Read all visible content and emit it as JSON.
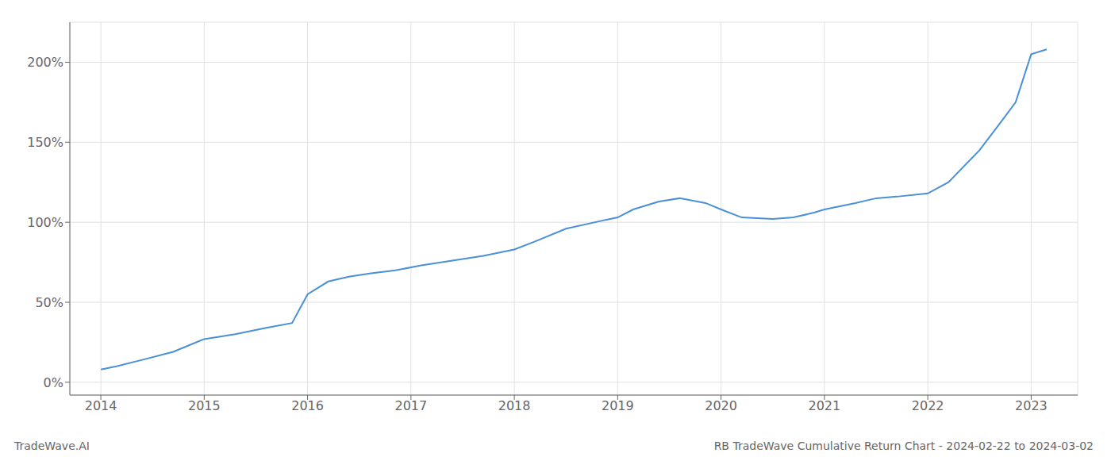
{
  "chart_data": {
    "type": "line",
    "title": "RB TradeWave Cumulative Return Chart - 2024-02-22 to 2024-03-02",
    "annotations": [
      "TradeWave.AI"
    ],
    "x": [
      2014.0,
      2014.15,
      2014.4,
      2014.7,
      2015.0,
      2015.3,
      2015.6,
      2015.85,
      2016.0,
      2016.2,
      2016.4,
      2016.6,
      2016.85,
      2017.1,
      2017.4,
      2017.7,
      2018.0,
      2018.2,
      2018.5,
      2018.85,
      2019.0,
      2019.15,
      2019.4,
      2019.6,
      2019.85,
      2020.0,
      2020.2,
      2020.5,
      2020.7,
      2020.9,
      2021.0,
      2021.15,
      2021.3,
      2021.5,
      2021.7,
      2022.0,
      2022.2,
      2022.5,
      2022.7,
      2022.85,
      2023.0,
      2023.15
    ],
    "values": [
      8,
      10,
      14,
      19,
      27,
      30,
      34,
      37,
      55,
      63,
      66,
      68,
      70,
      73,
      76,
      79,
      83,
      88,
      96,
      101,
      103,
      108,
      113,
      115,
      112,
      108,
      103,
      102,
      103,
      106,
      108,
      110,
      112,
      115,
      116,
      118,
      125,
      145,
      162,
      175,
      205,
      208
    ],
    "color": "#4a90d9",
    "xlim": [
      2013.7,
      2023.45
    ],
    "ylim": [
      -8,
      225
    ],
    "xticks": [
      2014,
      2015,
      2016,
      2017,
      2018,
      2019,
      2020,
      2021,
      2022,
      2023
    ],
    "yticks": [
      {
        "value": 0,
        "label": "0%"
      },
      {
        "value": 50,
        "label": "50%"
      },
      {
        "value": 100,
        "label": "100%"
      },
      {
        "value": 150,
        "label": "150%"
      },
      {
        "value": 200,
        "label": "200%"
      }
    ],
    "grid": true
  }
}
